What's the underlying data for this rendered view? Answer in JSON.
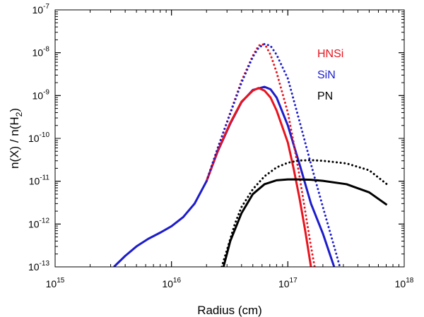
{
  "chart_data": {
    "type": "line",
    "xscale": "log",
    "yscale": "log",
    "xlim": [
      1000000000000000.0,
      1e+18
    ],
    "ylim": [
      1e-13,
      1e-07
    ],
    "xlabel": "Radius (cm)",
    "ylabel": "n(X) / n(H2)",
    "ylabel_parts": {
      "prefix": "n(X) / n(H",
      "sub": "2",
      "suffix": ")"
    },
    "x_ticks": [
      {
        "base": "10",
        "exp": "15",
        "value": 1000000000000000.0
      },
      {
        "base": "10",
        "exp": "16",
        "value": 1e+16
      },
      {
        "base": "10",
        "exp": "17",
        "value": 1e+17
      },
      {
        "base": "10",
        "exp": "18",
        "value": 1e+18
      }
    ],
    "y_ticks": [
      {
        "base": "10",
        "exp": "-13",
        "value": 1e-13
      },
      {
        "base": "10",
        "exp": "-12",
        "value": 1e-12
      },
      {
        "base": "10",
        "exp": "-11",
        "value": 1e-11
      },
      {
        "base": "10",
        "exp": "-10",
        "value": 1e-10
      },
      {
        "base": "10",
        "exp": "-9",
        "value": 1e-09
      },
      {
        "base": "10",
        "exp": "-8",
        "value": 1e-08
      },
      {
        "base": "10",
        "exp": "-7",
        "value": 1e-07
      }
    ],
    "legend": [
      {
        "label": "HNSi",
        "color": "#e8141e"
      },
      {
        "label": "SiN",
        "color": "#1c1ccc"
      },
      {
        "label": "PN",
        "color": "#000000"
      }
    ],
    "series": [
      {
        "name": "SiN solid",
        "species": "SiN",
        "style": "solid",
        "color": "#1c1ccc",
        "points": [
          [
            3200000000000000.0,
            1e-13
          ],
          [
            4000000000000000.0,
            1.8e-13
          ],
          [
            5000000000000000.0,
            3e-13
          ],
          [
            6300000000000000.0,
            4.5e-13
          ],
          [
            8000000000000000.0,
            6.3e-13
          ],
          [
            1e+16,
            8.9e-13
          ],
          [
            1.26e+16,
            1.45e-12
          ],
          [
            1.58e+16,
            3e-12
          ],
          [
            2e+16,
            1e-11
          ],
          [
            2.5e+16,
            5e-11
          ],
          [
            3.2e+16,
            2.2e-10
          ],
          [
            4e+16,
            7e-10
          ],
          [
            5e+16,
            1.35e-09
          ],
          [
            6.3e+16,
            1.6e-09
          ],
          [
            7.1e+16,
            1.4e-09
          ],
          [
            8e+16,
            9e-10
          ],
          [
            1e+17,
            2e-10
          ],
          [
            1.26e+17,
            2.5e-11
          ],
          [
            1.58e+17,
            3e-12
          ],
          [
            2e+17,
            6e-13
          ],
          [
            2.5e+17,
            1e-13
          ]
        ]
      },
      {
        "name": "HNSi solid",
        "species": "HNSi",
        "style": "solid",
        "color": "#e8141e",
        "points": [
          [
            2e+16,
            1e-11
          ],
          [
            2.5e+16,
            5.2e-11
          ],
          [
            3.2e+16,
            2.3e-10
          ],
          [
            4e+16,
            7.2e-10
          ],
          [
            5e+16,
            1.3e-09
          ],
          [
            5.6e+16,
            1.5e-09
          ],
          [
            6.3e+16,
            1.3e-09
          ],
          [
            7.1e+16,
            9e-10
          ],
          [
            8e+16,
            4.5e-10
          ],
          [
            1e+17,
            8e-11
          ],
          [
            1.12e+17,
            2e-11
          ],
          [
            1.26e+17,
            4e-12
          ],
          [
            1.41e+17,
            7e-13
          ],
          [
            1.58e+17,
            1e-13
          ]
        ]
      },
      {
        "name": "HNSi dotted",
        "species": "HNSi",
        "style": "dotted",
        "color": "#e8141e",
        "points": [
          [
            2e+16,
            1e-11
          ],
          [
            2.5e+16,
            6e-11
          ],
          [
            3.2e+16,
            4e-10
          ],
          [
            4e+16,
            2.2e-09
          ],
          [
            5e+16,
            8.5e-09
          ],
          [
            5.6e+16,
            1.45e-08
          ],
          [
            6e+16,
            1.6e-08
          ],
          [
            6.5e+16,
            1.4e-08
          ],
          [
            7.1e+16,
            9e-09
          ],
          [
            8e+16,
            3.5e-09
          ],
          [
            1e+17,
            4e-10
          ],
          [
            1.12e+17,
            8e-11
          ],
          [
            1.26e+17,
            1.3e-11
          ],
          [
            1.41e+17,
            2e-12
          ],
          [
            1.58e+17,
            3e-13
          ],
          [
            1.7e+17,
            1e-13
          ]
        ]
      },
      {
        "name": "SiN dotted",
        "species": "SiN",
        "style": "dotted",
        "color": "#1c1ccc",
        "points": [
          [
            2e+16,
            1e-11
          ],
          [
            2.5e+16,
            6e-11
          ],
          [
            3.2e+16,
            3.8e-10
          ],
          [
            4e+16,
            2e-09
          ],
          [
            5e+16,
            8e-09
          ],
          [
            5.6e+16,
            1.3e-08
          ],
          [
            6.3e+16,
            1.6e-08
          ],
          [
            7.1e+16,
            1.45e-08
          ],
          [
            8e+16,
            9e-09
          ],
          [
            1e+17,
            2.5e-09
          ],
          [
            1.26e+17,
            2.5e-10
          ],
          [
            1.58e+17,
            2.5e-11
          ],
          [
            2e+17,
            2.5e-12
          ],
          [
            2.5e+17,
            3e-13
          ],
          [
            2.8e+17,
            1e-13
          ]
        ]
      },
      {
        "name": "PN solid",
        "species": "PN",
        "style": "solid",
        "color": "#000000",
        "points": [
          [
            2.8e+16,
            1e-13
          ],
          [
            3.2e+16,
            4e-13
          ],
          [
            4e+16,
            1.8e-12
          ],
          [
            5e+16,
            5e-12
          ],
          [
            6.3e+16,
            8.5e-12
          ],
          [
            8e+16,
            1.05e-11
          ],
          [
            1e+17,
            1.1e-11
          ],
          [
            1.26e+17,
            1.1e-11
          ],
          [
            1.58e+17,
            1.08e-11
          ],
          [
            2e+17,
            1.02e-11
          ],
          [
            3.2e+17,
            8.5e-12
          ],
          [
            5e+17,
            5.5e-12
          ],
          [
            7.1e+17,
            2.8e-12
          ]
        ]
      },
      {
        "name": "PN dotted",
        "species": "PN",
        "style": "dotted",
        "color": "#000000",
        "points": [
          [
            2.7e+16,
            1e-13
          ],
          [
            3e+16,
            2.5e-13
          ],
          [
            3.5e+16,
            1e-12
          ],
          [
            4e+16,
            2.5e-12
          ],
          [
            5e+16,
            6.5e-12
          ],
          [
            6.3e+16,
            1.3e-11
          ],
          [
            8e+16,
            2.1e-11
          ],
          [
            1e+17,
            2.7e-11
          ],
          [
            1.26e+17,
            3.05e-11
          ],
          [
            1.58e+17,
            3.1e-11
          ],
          [
            2e+17,
            3e-11
          ],
          [
            3.2e+17,
            2.6e-11
          ],
          [
            5e+17,
            1.8e-11
          ],
          [
            7.1e+17,
            8.5e-12
          ]
        ]
      }
    ]
  }
}
